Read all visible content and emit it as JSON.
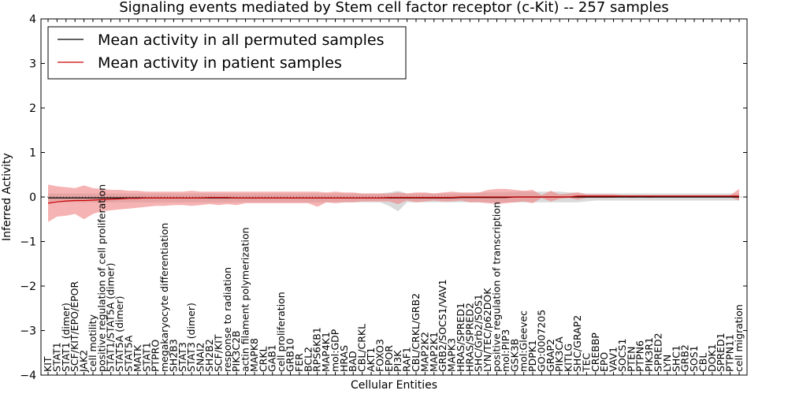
{
  "chart_data": {
    "type": "line",
    "title": "Signaling events mediated by Stem cell factor receptor (c-Kit) -- 257 samples",
    "xlabel": "Cellular Entities",
    "ylabel": "Inferred Activity",
    "ylim": [
      -4,
      4
    ],
    "yticks": [
      -4,
      -3,
      -2,
      -1,
      0,
      1,
      2,
      3,
      4
    ],
    "ytick_labels": [
      "−4",
      "−3",
      "−2",
      "−1",
      "0",
      "1",
      "2",
      "3",
      "4"
    ],
    "legend_position": "top-left",
    "categories": [
      "KIT",
      "STAT1",
      "STAT1 (dimer)",
      "SCF/KIT/EPO/EPOR",
      "JAK2",
      "cell motility",
      "positive regulation of cell proliferation",
      "STAT1/STAT5A (dimer)",
      "STAT5A (dimer)",
      "STAT5A",
      "MATK",
      "STAT1",
      "PTPRO",
      "megakaryocyte differentiation",
      "SH2B3",
      "STAT3",
      "STAT3 (dimer)",
      "SNAI2",
      "SH2B2",
      "SCF/KIT",
      "response to radiation",
      "PIK3C2B",
      "actin filament polymerization",
      "MAPK8",
      "CRKL",
      "GAB1",
      "cell proliferation",
      "GRB10",
      "FER",
      "BCL2",
      "RPS6KB1",
      "MAP4K1",
      "mol:GDP",
      "HRAS",
      "BAD",
      "CBL/CRKL",
      "AKT1",
      "FOXO3",
      "EPOR",
      "PI3K",
      "RAF1",
      "CBL/CRKL/GRB2",
      "MAP2K2",
      "MAP2K1",
      "GRB2/SOCS1/VAV1",
      "MAPK3",
      "HRAS/SPRED1",
      "HRAS/SPRED2",
      "SHC/Grb2/SOS1",
      "LYN/TEC/p62DOK",
      "positive regulation of transcription",
      "mol:PIP3",
      "GSK3B",
      "mol:Gleevec",
      "PDPK1",
      "GO:0007205",
      "GRAP2",
      "PIK3CA",
      "KITLG",
      "SHC/GRAP2",
      "TEC",
      "CREBBP",
      "EPO",
      "VAV1",
      "SOCS1",
      "PTEN",
      "PTPN6",
      "PIK3R1",
      "SPRED2",
      "LYN",
      "SHC1",
      "GRB2",
      "SOS1",
      "CBL",
      "DOK1",
      "SPRED1",
      "PTPN11",
      "cell migration"
    ],
    "series": [
      {
        "name": "Mean activity in all permuted samples",
        "color": "#000000",
        "band_color": "#bbbbbb",
        "values": [
          -0.02,
          -0.02,
          -0.02,
          -0.02,
          -0.02,
          -0.02,
          -0.02,
          -0.02,
          -0.02,
          -0.02,
          -0.02,
          -0.02,
          -0.02,
          -0.02,
          -0.02,
          -0.02,
          -0.02,
          -0.02,
          -0.02,
          -0.02,
          -0.02,
          -0.02,
          -0.02,
          -0.02,
          -0.02,
          -0.02,
          -0.02,
          -0.02,
          -0.02,
          -0.02,
          -0.02,
          -0.02,
          -0.02,
          -0.02,
          -0.02,
          -0.02,
          -0.02,
          -0.02,
          -0.02,
          -0.02,
          -0.02,
          -0.02,
          -0.02,
          -0.02,
          -0.02,
          -0.02,
          -0.01,
          -0.01,
          -0.01,
          -0.01,
          -0.01,
          -0.01,
          0.0,
          0.0,
          0.0,
          0.0,
          0.0,
          0.0,
          0.0,
          0.0,
          0.0,
          0.0,
          0.0,
          0.0,
          0.0,
          0.0,
          0.0,
          0.0,
          0.0,
          0.0,
          0.0,
          0.0,
          0.0,
          0.0,
          0.0,
          0.0,
          0.0,
          0.0
        ],
        "lower": [
          -0.12,
          -0.12,
          -0.12,
          -0.12,
          -0.12,
          -0.12,
          -0.12,
          -0.12,
          -0.12,
          -0.12,
          -0.12,
          -0.12,
          -0.12,
          -0.12,
          -0.12,
          -0.12,
          -0.12,
          -0.12,
          -0.12,
          -0.12,
          -0.12,
          -0.12,
          -0.12,
          -0.12,
          -0.12,
          -0.12,
          -0.12,
          -0.12,
          -0.12,
          -0.12,
          -0.12,
          -0.12,
          -0.12,
          -0.12,
          -0.12,
          -0.12,
          -0.12,
          -0.12,
          -0.2,
          -0.32,
          -0.12,
          -0.12,
          -0.12,
          -0.12,
          -0.12,
          -0.12,
          -0.12,
          -0.12,
          -0.12,
          -0.12,
          -0.12,
          -0.12,
          -0.12,
          -0.12,
          -0.12,
          -0.12,
          -0.12,
          -0.12,
          -0.12,
          -0.12,
          -0.1,
          -0.08,
          -0.08,
          -0.08,
          -0.08,
          -0.08,
          -0.08,
          -0.08,
          -0.08,
          -0.08,
          -0.08,
          -0.08,
          -0.08,
          -0.08,
          -0.08,
          -0.08,
          -0.08,
          -0.08
        ],
        "upper": [
          0.08,
          0.08,
          0.08,
          0.08,
          0.08,
          0.08,
          0.08,
          0.08,
          0.08,
          0.08,
          0.08,
          0.08,
          0.08,
          0.08,
          0.08,
          0.08,
          0.08,
          0.08,
          0.08,
          0.08,
          0.08,
          0.08,
          0.08,
          0.08,
          0.08,
          0.08,
          0.08,
          0.08,
          0.08,
          0.08,
          0.08,
          0.08,
          0.08,
          0.08,
          0.08,
          0.08,
          0.08,
          0.08,
          0.1,
          0.14,
          0.08,
          0.08,
          0.08,
          0.08,
          0.08,
          0.08,
          0.08,
          0.08,
          0.1,
          0.1,
          0.1,
          0.1,
          0.12,
          0.12,
          0.12,
          0.12,
          0.12,
          0.12,
          0.1,
          0.1,
          0.08,
          0.08,
          0.08,
          0.08,
          0.08,
          0.08,
          0.08,
          0.08,
          0.08,
          0.08,
          0.08,
          0.08,
          0.08,
          0.08,
          0.08,
          0.08,
          0.08,
          0.08
        ]
      },
      {
        "name": "Mean activity in patient samples",
        "color": "#cc0000",
        "band_color": "#f08080",
        "values": [
          -0.14,
          -0.11,
          -0.09,
          -0.08,
          -0.08,
          -0.07,
          -0.06,
          -0.05,
          -0.04,
          -0.03,
          -0.03,
          -0.02,
          -0.02,
          -0.02,
          -0.02,
          -0.02,
          -0.02,
          -0.02,
          -0.01,
          -0.01,
          -0.01,
          -0.02,
          -0.02,
          -0.02,
          -0.02,
          -0.02,
          -0.02,
          -0.02,
          -0.02,
          -0.02,
          -0.02,
          -0.02,
          -0.02,
          -0.02,
          -0.02,
          -0.02,
          -0.02,
          -0.02,
          -0.01,
          -0.01,
          -0.01,
          -0.01,
          -0.01,
          -0.01,
          -0.01,
          -0.01,
          0.0,
          0.0,
          0.0,
          0.0,
          0.0,
          0.0,
          0.0,
          0.0,
          0.0,
          0.0,
          0.0,
          0.0,
          0.0,
          0.02,
          0.02,
          0.02,
          0.02,
          0.02,
          0.02,
          0.02,
          0.02,
          0.02,
          0.02,
          0.02,
          0.02,
          0.02,
          0.02,
          0.02,
          0.02,
          0.02,
          0.02,
          0.02
        ],
        "lower": [
          -0.56,
          -0.44,
          -0.42,
          -0.38,
          -0.5,
          -0.38,
          -0.32,
          -0.3,
          -0.28,
          -0.26,
          -0.24,
          -0.22,
          -0.2,
          -0.2,
          -0.18,
          -0.18,
          -0.2,
          -0.18,
          -0.16,
          -0.18,
          -0.16,
          -0.18,
          -0.14,
          -0.14,
          -0.14,
          -0.14,
          -0.14,
          -0.14,
          -0.14,
          -0.14,
          -0.22,
          -0.12,
          -0.14,
          -0.12,
          -0.12,
          -0.1,
          -0.1,
          -0.1,
          -0.1,
          -0.16,
          -0.08,
          -0.12,
          -0.1,
          -0.08,
          -0.1,
          -0.1,
          -0.08,
          -0.12,
          -0.12,
          -0.14,
          -0.16,
          -0.14,
          -0.12,
          -0.1,
          -0.14,
          -0.02,
          -0.1,
          -0.04,
          -0.02,
          -0.06,
          -0.02,
          -0.02,
          -0.02,
          -0.02,
          0.0,
          -0.02,
          0.0,
          -0.02,
          0.0,
          0.0,
          0.0,
          0.0,
          0.0,
          0.0,
          0.0,
          0.0,
          0.0,
          -0.08
        ],
        "upper": [
          0.28,
          0.24,
          0.22,
          0.2,
          0.26,
          0.2,
          0.18,
          0.16,
          0.16,
          0.14,
          0.14,
          0.12,
          0.12,
          0.12,
          0.12,
          0.12,
          0.14,
          0.12,
          0.12,
          0.12,
          0.12,
          0.12,
          0.12,
          0.12,
          0.12,
          0.12,
          0.12,
          0.12,
          0.12,
          0.12,
          0.12,
          0.1,
          0.12,
          0.1,
          0.1,
          0.08,
          0.08,
          0.08,
          0.08,
          0.1,
          0.08,
          0.1,
          0.1,
          0.08,
          0.1,
          0.12,
          0.1,
          0.1,
          0.1,
          0.16,
          0.18,
          0.18,
          0.16,
          0.14,
          0.16,
          0.04,
          0.14,
          0.06,
          0.08,
          0.1,
          0.06,
          0.06,
          0.06,
          0.06,
          0.04,
          0.04,
          0.04,
          0.04,
          0.04,
          0.04,
          0.04,
          0.04,
          0.04,
          0.04,
          0.04,
          0.04,
          0.04,
          0.18
        ]
      }
    ]
  }
}
